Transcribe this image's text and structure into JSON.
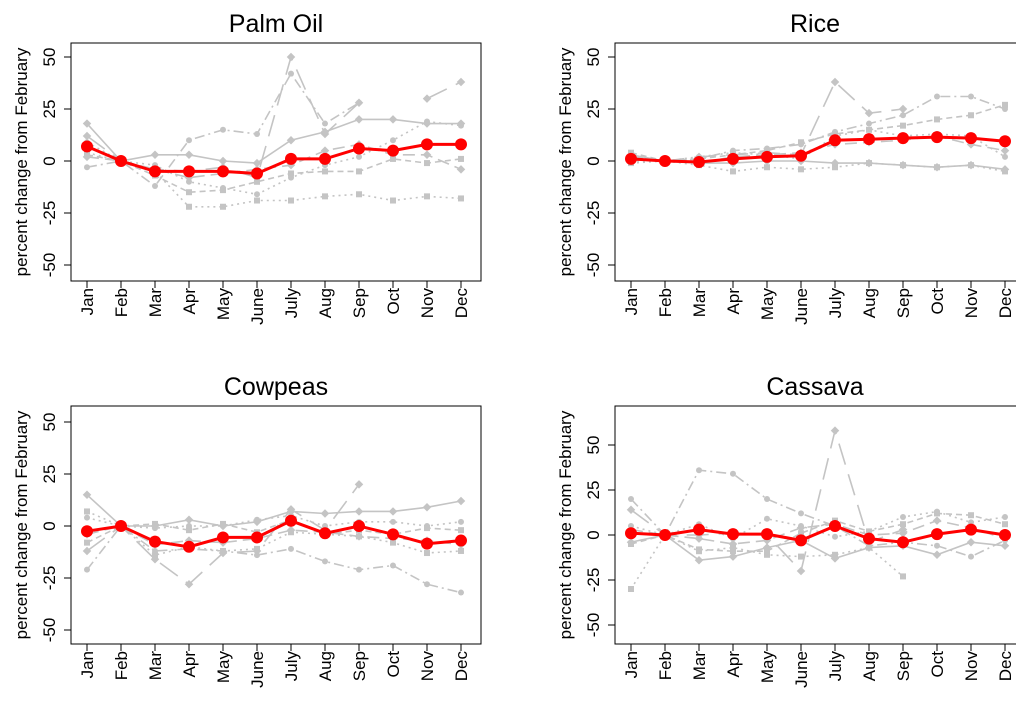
{
  "figure": {
    "months": [
      "Jan",
      "Feb",
      "Mar",
      "Apr",
      "May",
      "June",
      "July",
      "Aug",
      "Sep",
      "Oct",
      "Nov",
      "Dec"
    ]
  },
  "chart_data": [
    {
      "type": "line",
      "title": "Palm Oil",
      "ylabel": "percent change from February",
      "xlabel": "",
      "ylim": [
        -60,
        55
      ],
      "yticks": [
        "50",
        "25",
        "0",
        "-25",
        "-50"
      ],
      "categories": [
        "Jan",
        "Feb",
        "Mar",
        "Apr",
        "May",
        "June",
        "July",
        "Aug",
        "Sep",
        "Oct",
        "Nov",
        "Dec"
      ],
      "grid": false,
      "main": {
        "color": "#ff0000",
        "values": [
          7,
          0,
          -5,
          -5,
          -5,
          -6,
          1,
          1,
          6,
          5,
          8,
          8
        ]
      },
      "background_color": "#c4c4c4",
      "background": [
        {
          "dash": "22,10",
          "values": [
            12,
            0,
            -4,
            -5,
            -3,
            -8,
            50,
            13,
            28,
            null,
            30,
            38
          ]
        },
        {
          "dash": "2,4",
          "values": [
            4,
            0,
            -5,
            -22,
            -22,
            -19,
            -19,
            -17,
            -16,
            -19,
            -17,
            -18
          ]
        },
        {
          "dash": "10,4,2,4",
          "values": [
            -3,
            0,
            -12,
            10,
            15,
            13,
            42,
            18,
            28,
            null,
            null,
            null
          ]
        },
        {
          "dash": "",
          "values": [
            18,
            0,
            3,
            3,
            0,
            -1,
            10,
            14,
            20,
            20,
            18,
            18
          ]
        },
        {
          "dash": "6,4",
          "values": [
            3,
            0,
            -7,
            -15,
            -14,
            -10,
            -6,
            -5,
            -5,
            1,
            -1,
            1
          ]
        },
        {
          "dash": "2,4",
          "values": [
            9,
            0,
            -2,
            -10,
            -13,
            -16,
            -8,
            -2,
            2,
            10,
            19,
            17
          ]
        },
        {
          "dash": "12,6",
          "values": [
            2,
            0,
            -4,
            -8,
            -6,
            -4,
            -2,
            5,
            8,
            3,
            3,
            -4
          ]
        }
      ]
    },
    {
      "type": "line",
      "title": "Rice",
      "ylabel": "percent change from February",
      "xlabel": "",
      "ylim": [
        -60,
        55
      ],
      "yticks": [
        "50",
        "25",
        "0",
        "-25",
        "-50"
      ],
      "categories": [
        "Jan",
        "Feb",
        "Mar",
        "Apr",
        "May",
        "June",
        "July",
        "Aug",
        "Sep",
        "Oct",
        "Nov",
        "Dec"
      ],
      "grid": false,
      "main": {
        "color": "#ff0000",
        "values": [
          1,
          0,
          -0.5,
          1,
          2,
          2.5,
          10,
          10.5,
          11,
          11.5,
          11,
          9.5
        ]
      },
      "background_color": "#c4c4c4",
      "background": [
        {
          "dash": "22,10",
          "values": [
            3,
            0,
            2,
            3,
            4,
            3,
            38,
            23,
            25,
            null,
            null,
            null
          ]
        },
        {
          "dash": "2,4",
          "values": [
            -1,
            0,
            -2,
            -5,
            -3,
            -4,
            -3,
            -1,
            -2,
            -3,
            -2,
            -5
          ]
        },
        {
          "dash": "10,4,2,4",
          "values": [
            2,
            0,
            1,
            5,
            6,
            8,
            14,
            18,
            22,
            31,
            31,
            25
          ]
        },
        {
          "dash": "",
          "values": [
            1,
            0,
            -1,
            -1,
            0,
            0,
            -1,
            -1,
            -2,
            -3,
            -2,
            -4
          ]
        },
        {
          "dash": "6,4",
          "values": [
            4,
            0,
            1,
            3,
            5,
            9,
            13,
            15,
            17,
            20,
            22,
            27
          ]
        },
        {
          "dash": "2,4",
          "values": [
            0,
            0,
            2,
            4,
            3,
            1,
            12,
            15,
            12,
            13,
            12,
            2
          ]
        },
        {
          "dash": "12,6",
          "values": [
            2,
            0,
            -1,
            2,
            3,
            4,
            8,
            9,
            10,
            12,
            8,
            5
          ]
        }
      ]
    },
    {
      "type": "line",
      "title": "Cowpeas",
      "ylabel": "percent change from February",
      "xlabel": "",
      "ylim": [
        -60,
        55
      ],
      "yticks": [
        "50",
        "25",
        "0",
        "-25",
        "-50"
      ],
      "categories": [
        "Jan",
        "Feb",
        "Mar",
        "Apr",
        "May",
        "June",
        "July",
        "Aug",
        "Sep",
        "Oct",
        "Nov",
        "Dec"
      ],
      "grid": false,
      "main": {
        "color": "#ff0000",
        "values": [
          -2.5,
          0,
          -7.5,
          -10,
          -5.5,
          -5.5,
          2.5,
          -3.5,
          0,
          -4,
          -8.5,
          -7
        ]
      },
      "background_color": "#c4c4c4",
      "background": [
        {
          "dash": "22,10",
          "values": [
            -12,
            0,
            -16,
            -28,
            -13,
            -12,
            8,
            -2,
            20,
            null,
            null,
            null
          ]
        },
        {
          "dash": "2,4",
          "values": [
            7,
            0,
            -14,
            -10,
            -12,
            -11,
            -3,
            -4,
            -5,
            -8,
            -13,
            -12
          ]
        },
        {
          "dash": "10,4,2,4",
          "values": [
            -21,
            0,
            -12,
            -11,
            -12,
            -14,
            -11,
            -17,
            -21,
            -19,
            -28,
            -32
          ]
        },
        {
          "dash": "",
          "values": [
            15,
            0,
            0,
            3,
            0,
            2,
            7,
            6,
            7,
            7,
            9,
            12
          ]
        },
        {
          "dash": "6,4",
          "values": [
            -8,
            0,
            1,
            -2,
            1,
            -3,
            3,
            -4,
            -2,
            -4,
            -1,
            -2
          ]
        },
        {
          "dash": "2,4",
          "values": [
            4,
            0,
            -1,
            0,
            0,
            3,
            5,
            0,
            2,
            2,
            0,
            2
          ]
        },
        {
          "dash": "12,6",
          "values": [
            -4,
            0,
            -9,
            -7,
            -8,
            -6,
            -2,
            -3,
            -5,
            -6,
            -7,
            -9
          ]
        }
      ]
    },
    {
      "type": "line",
      "title": "Cassava",
      "ylabel": "percent change from February",
      "xlabel": "",
      "ylim": [
        -60,
        65
      ],
      "yticks": [
        "50",
        "25",
        "0",
        "-25",
        "-50"
      ],
      "categories": [
        "Jan",
        "Feb",
        "Mar",
        "Apr",
        "May",
        "June",
        "July",
        "Aug",
        "Sep",
        "Oct",
        "Nov",
        "Dec"
      ],
      "grid": false,
      "main": {
        "color": "#ff0000",
        "values": [
          1,
          0,
          3,
          0.5,
          0.5,
          -3,
          5,
          -2,
          -4,
          0.5,
          3,
          0
        ]
      },
      "background_color": "#c4c4c4",
      "background": [
        {
          "dash": "22,10",
          "values": [
            14,
            0,
            0,
            1,
            0,
            -20,
            58,
            -4,
            3,
            null,
            null,
            null
          ]
        },
        {
          "dash": "2,4",
          "values": [
            -30,
            0,
            -9,
            -7,
            -11,
            -12,
            -11,
            -7,
            -23,
            null,
            null,
            null
          ]
        },
        {
          "dash": "10,4,2,4",
          "values": [
            20,
            0,
            36,
            34,
            20,
            12,
            5,
            -6,
            -4,
            -6,
            -12,
            -3
          ]
        },
        {
          "dash": "",
          "values": [
            -4,
            0,
            -14,
            -12,
            -7,
            -3,
            -13,
            -7,
            -6,
            -11,
            -4,
            -6
          ]
        },
        {
          "dash": "6,4",
          "values": [
            -5,
            0,
            -8,
            -9,
            -9,
            1,
            8,
            2,
            6,
            12,
            11,
            6
          ]
        },
        {
          "dash": "2,4",
          "values": [
            5,
            0,
            6,
            -2,
            9,
            5,
            -1,
            2,
            10,
            13,
            7,
            10
          ]
        },
        {
          "dash": "12,6",
          "values": [
            3,
            0,
            -2,
            -5,
            -3,
            4,
            6,
            0,
            1,
            8,
            4,
            -2
          ]
        }
      ]
    }
  ]
}
